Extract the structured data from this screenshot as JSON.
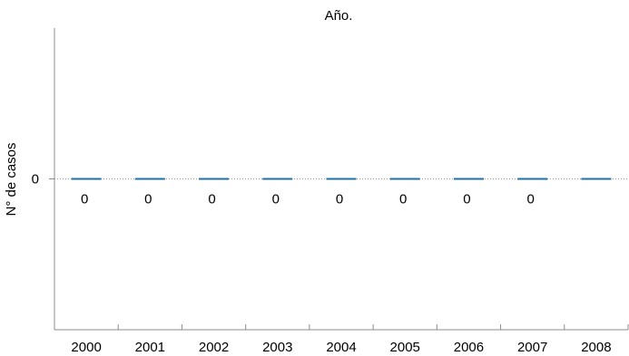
{
  "chart_data": {
    "type": "bar",
    "title": "Año.",
    "xlabel": "",
    "ylabel": "N° de casos",
    "categories": [
      "2000",
      "2001",
      "2002",
      "2003",
      "2004",
      "2005",
      "2006",
      "2007",
      "2008"
    ],
    "values": [
      0,
      0,
      0,
      0,
      0,
      0,
      0,
      0,
      0
    ],
    "data_labels": [
      "0",
      "0",
      "0",
      "0",
      "0",
      "0",
      "0",
      "0",
      ""
    ],
    "y_ticks": [
      "0"
    ],
    "ylim": [
      -1,
      1
    ],
    "grid": false,
    "legend": "none",
    "bar_color": "#1f6fa8",
    "zero_line_color": "#9a9a9a"
  }
}
